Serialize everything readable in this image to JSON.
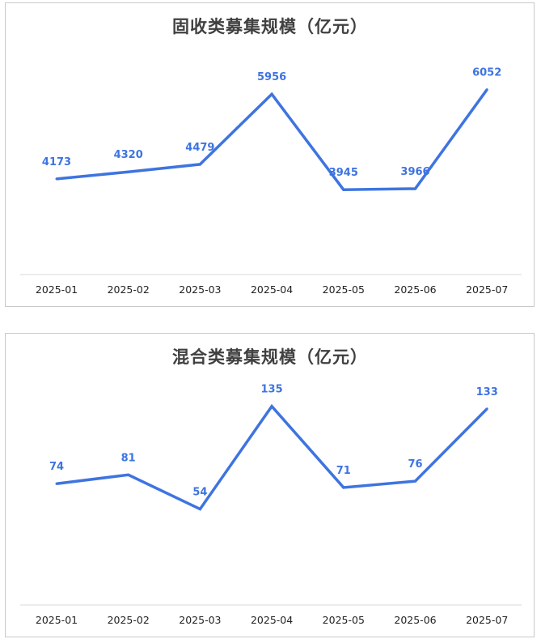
{
  "colors": {
    "series": "#3e74e0",
    "axis": "#d9d9d9",
    "drop_line_top": "#9ec0e8"
  },
  "chart_data": [
    {
      "type": "line",
      "title": "固收类募集规模（亿元）",
      "xlabel": "",
      "ylabel": "",
      "categories": [
        "2025-01",
        "2025-02",
        "2025-03",
        "2025-04",
        "2025-05",
        "2025-06",
        "2025-07"
      ],
      "series": [
        {
          "values": [
            4173,
            4320,
            4479,
            5956,
            3945,
            3966,
            6052
          ]
        }
      ],
      "grid": false,
      "data_labels": true
    },
    {
      "type": "line",
      "title": "混合类募集规模（亿元）",
      "xlabel": "",
      "ylabel": "",
      "categories": [
        "2025-01",
        "2025-02",
        "2025-03",
        "2025-04",
        "2025-05",
        "2025-06",
        "2025-07"
      ],
      "series": [
        {
          "values": [
            74,
            81,
            54,
            135,
            71,
            76,
            133
          ]
        }
      ],
      "grid": false,
      "data_labels": true
    }
  ]
}
